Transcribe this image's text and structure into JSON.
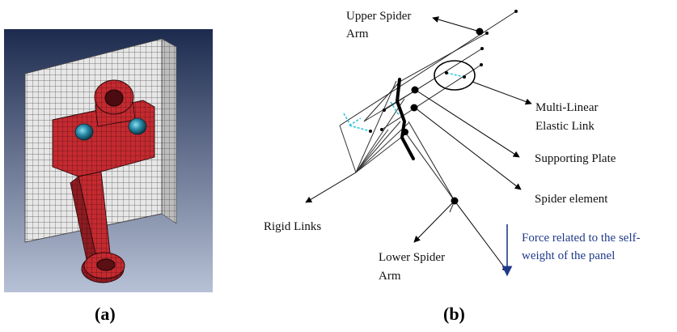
{
  "subfigures": {
    "a": {
      "label": "(a)"
    },
    "b": {
      "label": "(b)"
    }
  },
  "colors": {
    "viewport_top": "#1c2a4e",
    "viewport_bottom": "#b7c1d6",
    "mesh_plate": "#e7e7e7",
    "mesh_arm": "#c42a30",
    "bolt": "#2a8aa8",
    "force_arrow": "#1f3a8a",
    "cyan_link": "#2bc6df"
  },
  "annotations": {
    "upper_spider_arm": [
      "Upper Spider",
      "Arm"
    ],
    "multi_linear_link": [
      "Multi-Linear",
      "Elastic Link"
    ],
    "supporting_plate": [
      "Supporting Plate"
    ],
    "spider_element": [
      "Spider element"
    ],
    "rigid_links": [
      "Rigid Links"
    ],
    "lower_spider_arm": [
      "Lower Spider",
      "Arm"
    ],
    "force_note": [
      "Force related to the self-",
      "weight of the panel"
    ]
  }
}
